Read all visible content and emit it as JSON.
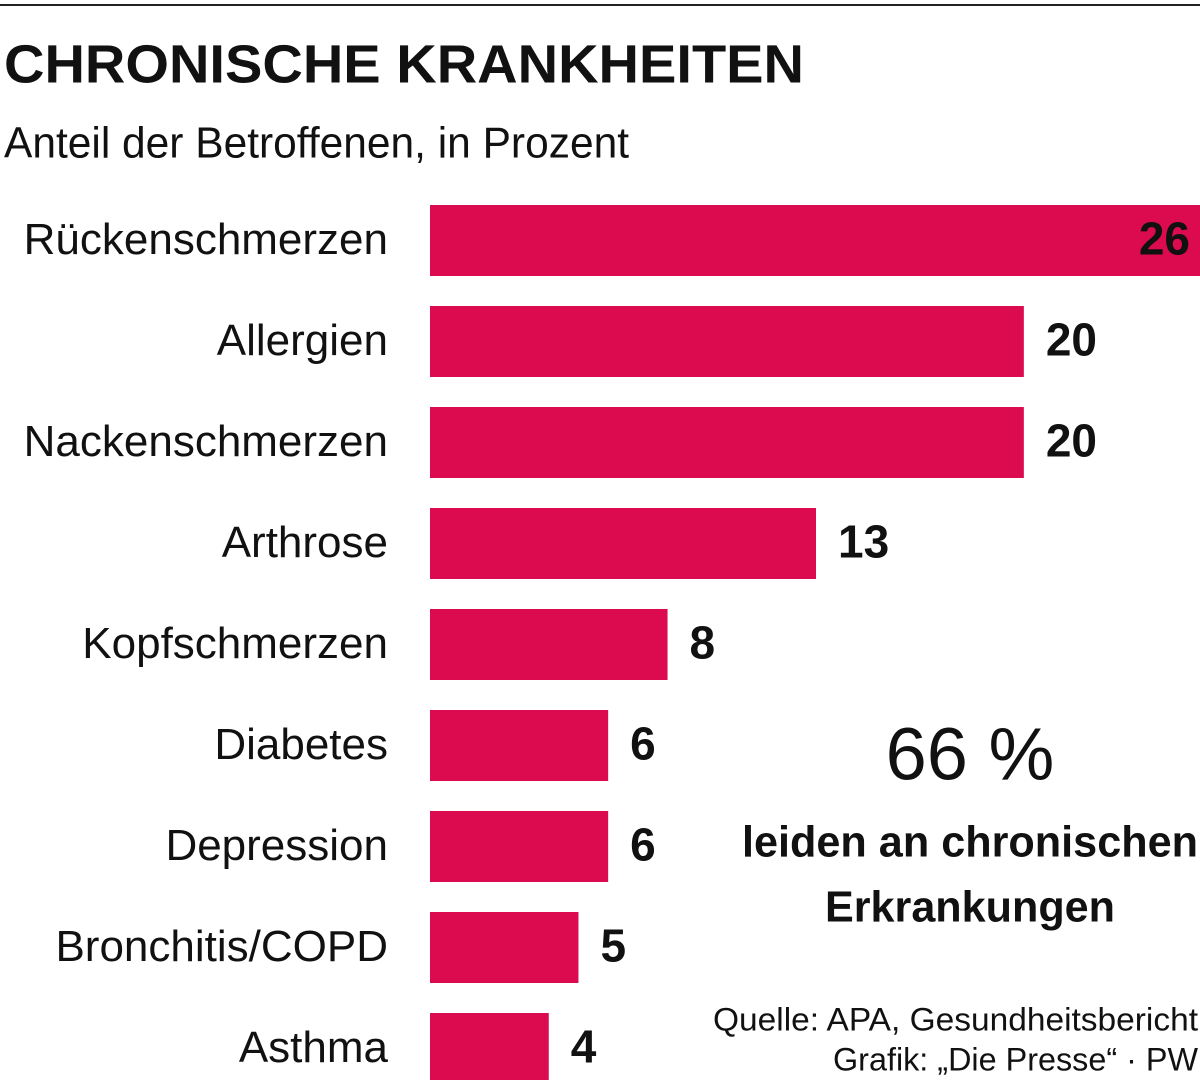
{
  "chart_data": {
    "type": "bar",
    "orientation": "horizontal",
    "title": "CHRONISCHE KRANKHEITEN",
    "subtitle": "Anteil der Betroffenen, in Prozent",
    "categories": [
      "Rückenschmerzen",
      "Allergien",
      "Nackenschmerzen",
      "Arthrose",
      "Kopfschmerzen",
      "Diabetes",
      "Depression",
      "Bronchitis/COPD",
      "Asthma"
    ],
    "values": [
      26,
      20,
      20,
      13,
      8,
      6,
      6,
      5,
      4
    ],
    "color": "#dc0a4f",
    "annotation": {
      "value": "66 %",
      "lines": [
        "leiden an chronischen",
        "Erkrankungen"
      ]
    },
    "source": [
      "Quelle: APA, Gesundheitsbericht",
      "Grafik: „Die Presse“ · PW"
    ]
  }
}
